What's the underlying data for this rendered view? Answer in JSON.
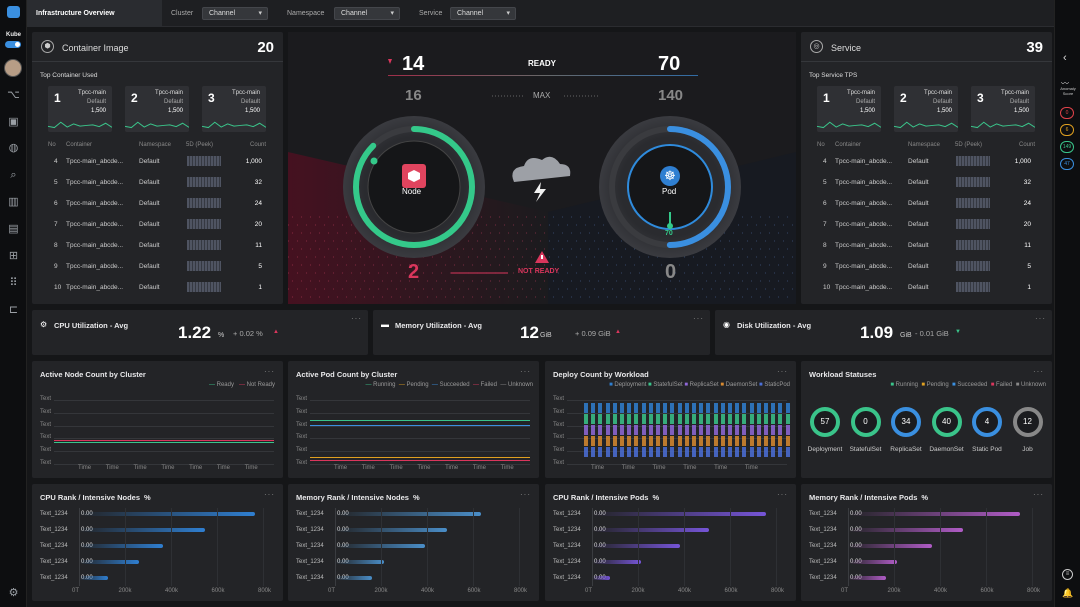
{
  "nav": {
    "brand": "Kube",
    "tab": "Infrastructure Overview"
  },
  "filters": [
    {
      "label": "Cluster",
      "value": "Channel"
    },
    {
      "label": "Namespace",
      "value": "Channel"
    },
    {
      "label": "Service",
      "value": "Channel"
    }
  ],
  "container": {
    "title": "Container Image",
    "total": "20",
    "subtitle": "Top Container Used",
    "top": [
      {
        "rank": "1",
        "name": "Tpcc-main",
        "ns": "Default",
        "count": "1,500"
      },
      {
        "rank": "2",
        "name": "Tpcc-main",
        "ns": "Default",
        "count": "1,500"
      },
      {
        "rank": "3",
        "name": "Tpcc-main",
        "ns": "Default",
        "count": "1,500"
      }
    ],
    "headers": [
      "No",
      "Container",
      "Namespace",
      "5D (Peek)",
      "Count"
    ],
    "rows": [
      [
        "4",
        "Tpcc-main_abcde...",
        "Default",
        "1,000"
      ],
      [
        "5",
        "Tpcc-main_abcde...",
        "Default",
        "32"
      ],
      [
        "6",
        "Tpcc-main_abcde...",
        "Default",
        "24"
      ],
      [
        "7",
        "Tpcc-main_abcde...",
        "Default",
        "20"
      ],
      [
        "8",
        "Tpcc-main_abcde...",
        "Default",
        "11"
      ],
      [
        "9",
        "Tpcc-main_abcde...",
        "Default",
        "5"
      ],
      [
        "10",
        "Tpcc-main_abcde...",
        "Default",
        "1"
      ]
    ]
  },
  "service": {
    "title": "Service",
    "total": "39",
    "subtitle": "Top Service TPS",
    "top": [
      {
        "rank": "1",
        "name": "Tpcc-main",
        "ns": "Default",
        "count": "1,500"
      },
      {
        "rank": "2",
        "name": "Tpcc-main",
        "ns": "Default",
        "count": "1,500"
      },
      {
        "rank": "3",
        "name": "Tpcc-main",
        "ns": "Default",
        "count": "1,500"
      }
    ],
    "headers": [
      "No",
      "Container",
      "Namespace",
      "5D (Peek)",
      "Count"
    ],
    "rows": [
      [
        "4",
        "Tpcc-main_abcde...",
        "Default",
        "1,000"
      ],
      [
        "5",
        "Tpcc-main_abcde...",
        "Default",
        "32"
      ],
      [
        "6",
        "Tpcc-main_abcde...",
        "Default",
        "24"
      ],
      [
        "7",
        "Tpcc-main_abcde...",
        "Default",
        "20"
      ],
      [
        "8",
        "Tpcc-main_abcde...",
        "Default",
        "11"
      ],
      [
        "9",
        "Tpcc-main_abcde...",
        "Default",
        "5"
      ],
      [
        "10",
        "Tpcc-main_abcde...",
        "Default",
        "1"
      ]
    ]
  },
  "center": {
    "node_ready": "14",
    "node_max": "16",
    "pod_ready": "70",
    "pod_max": "140",
    "ready_label": "READY",
    "max_label": "MAX",
    "not_ready_label": "NOT READY",
    "node_not_ready": "2",
    "pod_not_ready": "0",
    "node_label": "Node",
    "pod_label": "Pod",
    "pod_gauge_value": "70",
    "node_ratio": 0.875,
    "pod_ratio": 0.5
  },
  "metrics": [
    {
      "title": "CPU Utilization - Avg",
      "value": "1.22",
      "unit": "%",
      "delta": "+ 0.02 %",
      "dir": "up"
    },
    {
      "title": "Memory Utilization - Avg",
      "value": "12",
      "unit": "GiB",
      "delta": "+ 0.09 GiB",
      "dir": "up"
    },
    {
      "title": "Disk Utilization - Avg",
      "value": "1.09",
      "unit": "GiB",
      "delta": "- 0.01 GiB",
      "dir": "down"
    }
  ],
  "nodeCount": {
    "title": "Active Node Count by Cluster",
    "legend": [
      "Ready",
      "Not Ready"
    ],
    "ylabels": [
      "Text",
      "Text",
      "Text",
      "Text",
      "Text",
      "Text"
    ],
    "xlabels": [
      "Time",
      "Time",
      "Time",
      "Time",
      "Time",
      "Time",
      "Time"
    ]
  },
  "podCount": {
    "title": "Active Pod Count by Cluster",
    "legend": [
      "Running",
      "Pending",
      "Succeeded",
      "Failed",
      "Unknown"
    ],
    "ylabels": [
      "Text",
      "Text",
      "Text",
      "Text",
      "Text",
      "Text"
    ],
    "xlabels": [
      "Time",
      "Time",
      "Time",
      "Time",
      "Time",
      "Time",
      "Time"
    ]
  },
  "deployCount": {
    "title": "Deploy Count by Workload",
    "legend": [
      "Deployment",
      "StatefulSet",
      "ReplicaSet",
      "DaemonSet",
      "StaticPod"
    ],
    "ylabels": [
      "Text",
      "Text",
      "Text",
      "Text",
      "Text",
      "Text"
    ],
    "xlabels": [
      "Time",
      "Time",
      "Time",
      "Time",
      "Time",
      "Time"
    ]
  },
  "workload": {
    "title": "Workload Statuses",
    "legend": [
      "Running",
      "Pending",
      "Succeeded",
      "Failed",
      "Unknown"
    ],
    "items": [
      {
        "value": "57",
        "label": "Deployment"
      },
      {
        "value": "0",
        "label": "StatefulSet"
      },
      {
        "value": "34",
        "label": "ReplicaSet"
      },
      {
        "value": "40",
        "label": "DaemonSet"
      },
      {
        "value": "4",
        "label": "Static Pod"
      },
      {
        "value": "12",
        "label": "Job"
      }
    ]
  },
  "ranks": [
    {
      "title": "CPU Rank / Intensive Nodes",
      "unit": "%",
      "color": "#2f7fd1",
      "labels": [
        "Text_1234",
        "Text_1234",
        "Text_1234",
        "Text_1234",
        "Text_1234"
      ],
      "values": [
        "0.00",
        "0.00",
        "0.00",
        "0.00",
        "0.00"
      ],
      "fills": [
        0.96,
        0.69,
        0.46,
        0.33,
        0.16
      ],
      "axis": [
        "0T",
        "200k",
        "400k",
        "600k",
        "800k"
      ]
    },
    {
      "title": "Memory Rank / Intensive Nodes",
      "unit": "%",
      "color": "#4a8ec8",
      "labels": [
        "Text_1234",
        "Text_1234",
        "Text_1234",
        "Text_1234",
        "Text_1234"
      ],
      "values": [
        "0.00",
        "0.00",
        "0.00",
        "0.00",
        "0.00"
      ],
      "fills": [
        0.8,
        0.61,
        0.49,
        0.27,
        0.2
      ],
      "axis": [
        "0T",
        "200k",
        "400k",
        "600k",
        "800k"
      ]
    },
    {
      "title": "CPU Rank / Intensive Pods",
      "unit": "%",
      "color": "#7655d8",
      "labels": [
        "Text_1234",
        "Text_1234",
        "Text_1234",
        "Text_1234",
        "Text_1234"
      ],
      "values": [
        "0.00",
        "0.00",
        "0.00",
        "0.00",
        "0.00"
      ],
      "fills": [
        0.95,
        0.64,
        0.48,
        0.27,
        0.1
      ],
      "axis": [
        "0T",
        "200k",
        "400k",
        "600k",
        "800k"
      ]
    },
    {
      "title": "Memory Rank / Intensive Pods",
      "unit": "%",
      "color": "#b05cc6",
      "labels": [
        "Text_1234",
        "Text_1234",
        "Text_1234",
        "Text_1234",
        "Text_1234"
      ],
      "values": [
        "0.00",
        "0.00",
        "0.00",
        "0.00",
        "0.00"
      ],
      "fills": [
        0.94,
        0.63,
        0.46,
        0.27,
        0.21
      ],
      "axis": [
        "0T",
        "200k",
        "400k",
        "600k",
        "800k"
      ]
    }
  ],
  "rightbar": {
    "label": "Anomaly Score",
    "badges": [
      "0",
      "6",
      "149",
      "47"
    ]
  }
}
